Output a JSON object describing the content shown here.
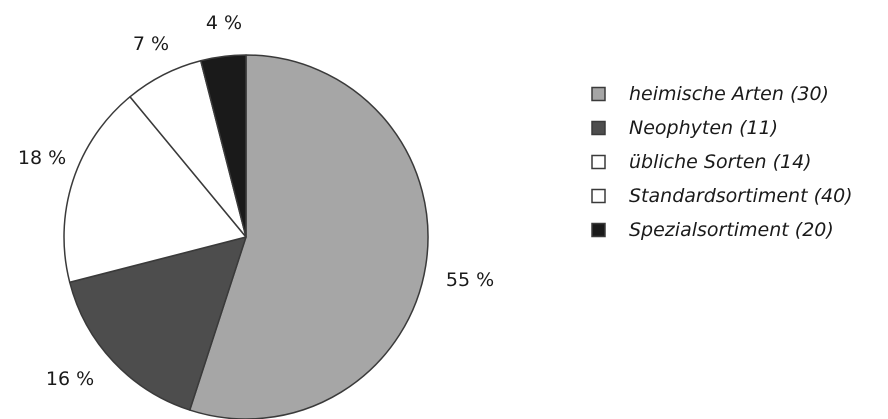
{
  "chart_data": {
    "type": "pie",
    "slices": [
      {
        "label": "55 %",
        "value": 55,
        "color": "#a6a6a6"
      },
      {
        "label": "16 %",
        "value": 16,
        "color": "#4d4d4d"
      },
      {
        "label": "18 %",
        "value": 18,
        "color": "#ffffff"
      },
      {
        "label": "7 %",
        "value": 7,
        "color": "#ffffff"
      },
      {
        "label": "4 %",
        "value": 4,
        "color": "#1a1a1a"
      }
    ],
    "legend": [
      {
        "label": "heimische Arten (30)",
        "color": "#a6a6a6"
      },
      {
        "label": "Neophyten (11)",
        "color": "#4d4d4d"
      },
      {
        "label": "übliche Sorten (14)",
        "color": "#ffffff"
      },
      {
        "label": "Standardsortiment (40)",
        "color": "#ffffff"
      },
      {
        "label": "Spezialsortiment (20)",
        "color": "#1a1a1a"
      }
    ],
    "legend_position": "right"
  }
}
